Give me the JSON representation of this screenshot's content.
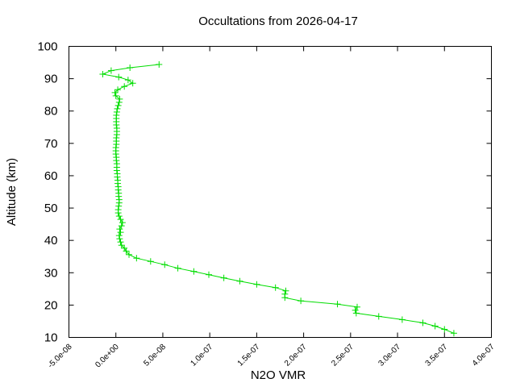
{
  "chart_data": {
    "type": "line",
    "title": "Occultations from 2026-04-17",
    "xlabel": "N2O VMR",
    "ylabel": "Altitude (km)",
    "xlim": [
      -5e-08,
      4e-07
    ],
    "ylim": [
      10,
      100
    ],
    "x_ticks": [
      -5e-08,
      0,
      5e-08,
      1e-07,
      1.5e-07,
      2e-07,
      2.5e-07,
      3e-07,
      3.5e-07,
      4e-07
    ],
    "x_tick_labels": [
      "-5.0e-08",
      "0.0e+00",
      "5.0e-08",
      "1.0e-07",
      "1.5e-07",
      "2.0e-07",
      "2.5e-07",
      "3.0e-07",
      "3.5e-07",
      "4.0e-07"
    ],
    "y_ticks": [
      10,
      20,
      30,
      40,
      50,
      60,
      70,
      80,
      90,
      100
    ],
    "y_tick_labels": [
      "10",
      "20",
      "30",
      "40",
      "50",
      "60",
      "70",
      "80",
      "90",
      "100"
    ],
    "grid": false,
    "series": [
      {
        "color": "#00dd00",
        "marker": "plus",
        "points": [
          [
            3.6e-07,
            11.3
          ],
          [
            3.5e-07,
            12.5
          ],
          [
            3.4e-07,
            13.5
          ],
          [
            3.27e-07,
            14.5
          ],
          [
            3.05e-07,
            15.5
          ],
          [
            2.8e-07,
            16.5
          ],
          [
            2.56e-07,
            17.5
          ],
          [
            2.55e-07,
            18.4
          ],
          [
            2.57e-07,
            19.4
          ],
          [
            2.36e-07,
            20.3
          ],
          [
            1.97e-07,
            21.3
          ],
          [
            1.8e-07,
            22.3
          ],
          [
            1.8e-07,
            23.4
          ],
          [
            1.81e-07,
            24.4
          ],
          [
            1.7e-07,
            25.4
          ],
          [
            1.5e-07,
            26.4
          ],
          [
            1.32e-07,
            27.4
          ],
          [
            1.15e-07,
            28.4
          ],
          [
            9.9e-08,
            29.4
          ],
          [
            8.3e-08,
            30.4
          ],
          [
            6.6e-08,
            31.4
          ],
          [
            5.2e-08,
            32.5
          ],
          [
            3.7e-08,
            33.5
          ],
          [
            2.2e-08,
            34.5
          ],
          [
            1.4e-08,
            35.6
          ],
          [
            1.1e-08,
            36.7
          ],
          [
            9e-09,
            37.6
          ],
          [
            6e-09,
            38.5
          ],
          [
            5e-09,
            39.5
          ],
          [
            4e-09,
            40.5
          ],
          [
            3.5e-09,
            41.5
          ],
          [
            5e-09,
            42.5
          ],
          [
            4e-09,
            43.5
          ],
          [
            6e-09,
            44.5
          ],
          [
            7e-09,
            45.5
          ],
          [
            5e-09,
            46.5
          ],
          [
            3.5e-09,
            47.5
          ],
          [
            2.5e-09,
            48.5
          ],
          [
            2.5e-09,
            49.5
          ],
          [
            3e-09,
            50.6
          ],
          [
            3.5e-09,
            51.6
          ],
          [
            3.5e-09,
            52.6
          ],
          [
            3e-09,
            53.6
          ],
          [
            3e-09,
            54.6
          ],
          [
            2.5e-09,
            55.6
          ],
          [
            2.5e-09,
            56.6
          ],
          [
            2e-09,
            57.6
          ],
          [
            2e-09,
            58.6
          ],
          [
            1.5e-09,
            59.6
          ],
          [
            1.5e-09,
            60.6
          ],
          [
            1e-09,
            61.6
          ],
          [
            1e-09,
            62.6
          ],
          [
            1e-09,
            63.7
          ],
          [
            5e-10,
            64.7
          ],
          [
            5e-10,
            65.7
          ],
          [
            0,
            66.7
          ],
          [
            0,
            67.7
          ],
          [
            0,
            68.7
          ],
          [
            5e-10,
            69.7
          ],
          [
            5e-10,
            70.7
          ],
          [
            5e-10,
            71.7
          ],
          [
            1e-09,
            72.7
          ],
          [
            1e-09,
            73.7
          ],
          [
            1e-09,
            74.7
          ],
          [
            5e-10,
            75.7
          ],
          [
            5e-10,
            76.7
          ],
          [
            5e-10,
            77.7
          ],
          [
            5e-10,
            78.7
          ],
          [
            1e-09,
            79.7
          ],
          [
            1.5e-09,
            80.7
          ],
          [
            2.5e-09,
            81.7
          ],
          [
            3.5e-09,
            82.7
          ],
          [
            4e-09,
            83.7
          ],
          [
            0,
            84.7
          ],
          [
            -1e-09,
            85.7
          ],
          [
            2e-09,
            86.6
          ],
          [
            9e-09,
            87.6
          ],
          [
            1.8e-08,
            88.6
          ],
          [
            1.3e-08,
            89.6
          ],
          [
            3e-09,
            90.5
          ],
          [
            -1.4e-08,
            91.4
          ],
          [
            -5e-09,
            92.5
          ],
          [
            1.5e-08,
            93.4
          ],
          [
            4.6e-08,
            94.4
          ]
        ]
      }
    ]
  }
}
